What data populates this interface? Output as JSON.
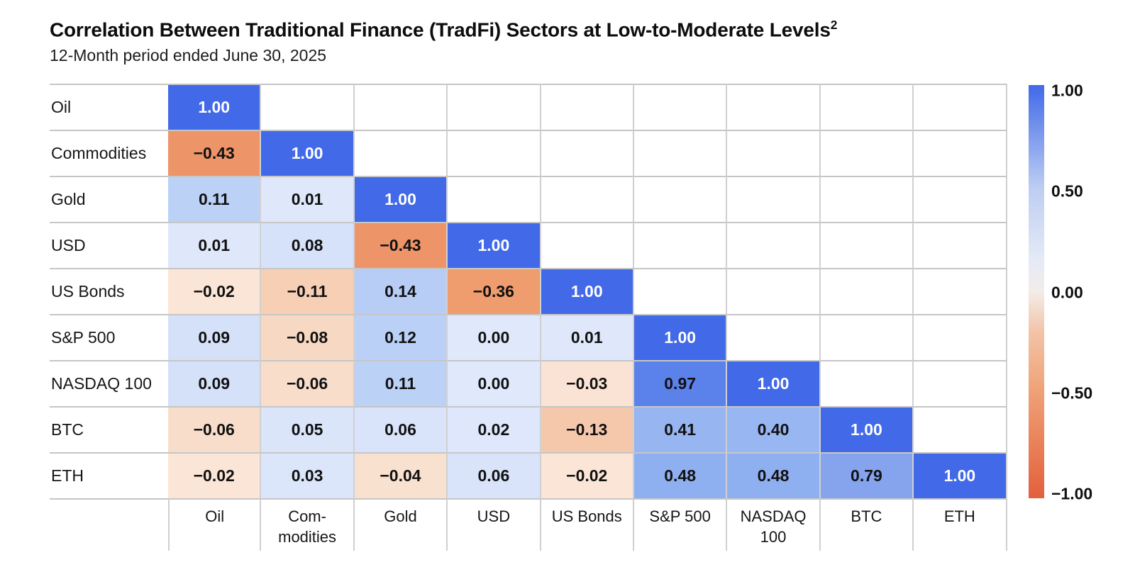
{
  "header": {
    "title": "Correlation Between Traditional Finance (TradFi) Sectors at Low-to-Moderate Levels",
    "footnote_marker": "2",
    "subtitle": "12-Month period ended June 30, 2025"
  },
  "chart_data": {
    "type": "heatmap",
    "title": "Correlation Between Traditional Finance (TradFi) Sectors at Low-to-Moderate Levels",
    "subtitle": "12-Month period ended June 30, 2025",
    "row_labels": [
      "Oil",
      "Commodities",
      "Gold",
      "USD",
      "US Bonds",
      "S&P 500",
      "NASDAQ 100",
      "BTC",
      "ETH"
    ],
    "column_labels": [
      "Oil",
      "Com-\nmodities",
      "Gold",
      "USD",
      "US Bonds",
      "S&P 500",
      "NASDAQ\n100",
      "BTC",
      "ETH"
    ],
    "matrix": [
      [
        1.0
      ],
      [
        -0.43,
        1.0
      ],
      [
        0.11,
        0.01,
        1.0
      ],
      [
        0.01,
        0.08,
        -0.43,
        1.0
      ],
      [
        -0.02,
        -0.11,
        0.14,
        -0.36,
        1.0
      ],
      [
        0.09,
        -0.08,
        0.12,
        0.0,
        0.01,
        1.0
      ],
      [
        0.09,
        -0.06,
        0.11,
        0.0,
        -0.03,
        0.97,
        1.0
      ],
      [
        -0.06,
        0.05,
        0.06,
        0.02,
        -0.13,
        0.41,
        0.4,
        1.0
      ],
      [
        -0.02,
        0.03,
        -0.04,
        0.06,
        -0.02,
        0.48,
        0.48,
        0.79,
        1.0
      ]
    ],
    "value_range": [
      -1,
      1
    ],
    "shape": "lower-triangle",
    "colorbar_ticks": [
      "1.00",
      "0.50",
      "0.00",
      "-0.50",
      "-1.00"
    ],
    "colors": {
      "value_text": "#111111",
      "diagonal_text": "#FFFFFF",
      "grid_horizontal": "#C6C6C6",
      "grid_vertical": "#D0D0D0",
      "positive_stops": [
        [
          0.0,
          "#E0E9FB"
        ],
        [
          0.09,
          "#D5E1F9"
        ],
        [
          0.11,
          "#BCD1F6"
        ],
        [
          0.14,
          "#B7CDF5"
        ],
        [
          0.4,
          "#98B6F1"
        ],
        [
          0.48,
          "#8EAFF0"
        ],
        [
          0.79,
          "#86A4EE"
        ],
        [
          0.97,
          "#5B82EB"
        ],
        [
          1.0,
          "#4169E8"
        ]
      ],
      "negative_stops": [
        [
          -1.0,
          "#E2603D"
        ],
        [
          -0.43,
          "#EE9469"
        ],
        [
          -0.36,
          "#EF9C6E"
        ],
        [
          -0.13,
          "#F5C8AC"
        ],
        [
          -0.08,
          "#F7D9C3"
        ],
        [
          -0.04,
          "#F9E1D0"
        ],
        [
          0.0,
          "#FBE9DE"
        ]
      ],
      "colorbar_gradient": [
        [
          1.0,
          "#4169E8"
        ],
        [
          0.5,
          "#BDCEF2"
        ],
        [
          0.15,
          "#E5EAF6"
        ],
        [
          0.0,
          "#F3ECE9"
        ],
        [
          -0.2,
          "#F2C3A6"
        ],
        [
          -0.5,
          "#EF9F74"
        ],
        [
          -1.0,
          "#E2603D"
        ]
      ]
    }
  }
}
